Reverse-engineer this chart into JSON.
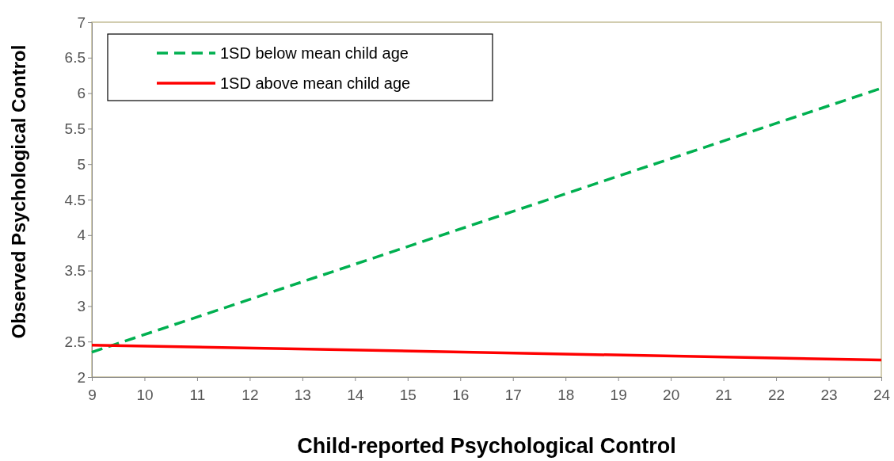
{
  "chart_data": {
    "type": "line",
    "xlabel": "Child-reported Psychological Control",
    "ylabel": "Observed Psychological Control",
    "x": [
      9,
      24
    ],
    "series": [
      {
        "name": "1SD below mean child age",
        "color": "#00b050",
        "values": [
          2.35,
          6.07
        ],
        "line_style": "dashed"
      },
      {
        "name": "1SD above mean child age",
        "color": "#ff0000",
        "values": [
          2.45,
          2.24
        ],
        "line_style": "solid"
      }
    ],
    "xlim": [
      9,
      24
    ],
    "xticks": [
      9,
      10,
      11,
      12,
      13,
      14,
      15,
      16,
      17,
      18,
      19,
      20,
      21,
      22,
      23,
      24
    ],
    "ylim": [
      2,
      7
    ],
    "yticks": [
      2,
      2.5,
      3,
      3.5,
      4,
      4.5,
      5,
      5.5,
      6,
      6.5,
      7
    ],
    "grid": false,
    "legend": "top left",
    "marker": "none"
  }
}
